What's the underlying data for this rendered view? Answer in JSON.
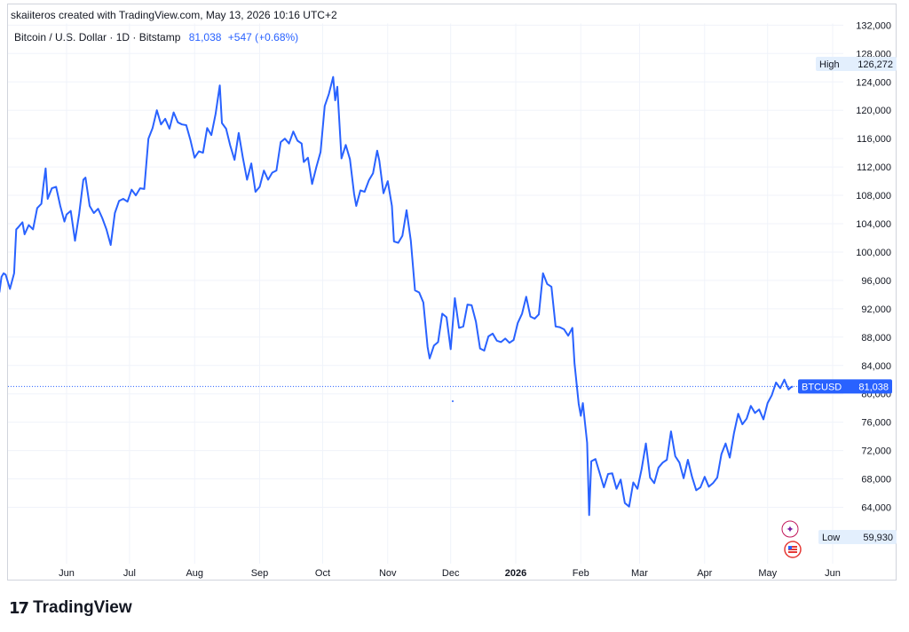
{
  "header": {
    "credit": "skaiiteros created with TradingView.com, May 13, 2026 10:16 UTC+2"
  },
  "legend": {
    "symbol": "Bitcoin / U.S. Dollar · 1D · Bitstamp",
    "last_price": "81,038",
    "change": "+547 (+0.68%)"
  },
  "footer": {
    "brand": "TradingView"
  },
  "colors": {
    "line": "#2962ff",
    "badge": "#2962ff",
    "grid": "#f0f3fa"
  },
  "chart_data": {
    "type": "line",
    "title": "",
    "symbol": "BTCUSD",
    "ylim": [
      58000,
      134000
    ],
    "y_ticks": [
      64000,
      68000,
      72000,
      76000,
      80000,
      84000,
      88000,
      92000,
      96000,
      100000,
      104000,
      108000,
      112000,
      116000,
      120000,
      124000,
      128000,
      132000
    ],
    "y_tick_labels": [
      "64,000",
      "68,000",
      "72,000",
      "76,000",
      "80,000",
      "84,000",
      "88,000",
      "92,000",
      "96,000",
      "100,000",
      "104,000",
      "108,000",
      "112,000",
      "116,000",
      "120,000",
      "124,000",
      "128,000",
      "132,000"
    ],
    "x_range": [
      "2025-04-30",
      "2026-06-30"
    ],
    "x_ticks": [
      {
        "date": "2025-06-01",
        "label": "Jun",
        "bold": false
      },
      {
        "date": "2025-07-01",
        "label": "Jul",
        "bold": false
      },
      {
        "date": "2025-08-01",
        "label": "Aug",
        "bold": false
      },
      {
        "date": "2025-09-01",
        "label": "Sep",
        "bold": false
      },
      {
        "date": "2025-10-01",
        "label": "Oct",
        "bold": false
      },
      {
        "date": "2025-11-01",
        "label": "Nov",
        "bold": false
      },
      {
        "date": "2025-12-01",
        "label": "Dec",
        "bold": false
      },
      {
        "date": "2026-01-01",
        "label": "2026",
        "bold": true
      },
      {
        "date": "2026-02-01",
        "label": "Feb",
        "bold": false
      },
      {
        "date": "2026-03-01",
        "label": "Mar",
        "bold": false
      },
      {
        "date": "2026-04-01",
        "label": "Apr",
        "bold": false
      },
      {
        "date": "2026-05-01",
        "label": "May",
        "bold": false
      },
      {
        "date": "2026-06-01",
        "label": "Jun",
        "bold": false
      }
    ],
    "high": {
      "label": "High",
      "value": "126,272"
    },
    "low": {
      "label": "Low",
      "value": "59,930"
    },
    "last": {
      "label": "BTCUSD",
      "value": "81,038",
      "y": 81038
    },
    "series": [
      {
        "points": [
          [
            "2025-04-30",
            94300
          ],
          [
            "2025-05-01",
            96500
          ],
          [
            "2025-05-02",
            97000
          ],
          [
            "2025-05-03",
            96800
          ],
          [
            "2025-05-05",
            94800
          ],
          [
            "2025-05-07",
            97000
          ],
          [
            "2025-05-08",
            103200
          ],
          [
            "2025-05-09",
            103500
          ],
          [
            "2025-05-11",
            104200
          ],
          [
            "2025-05-12",
            102500
          ],
          [
            "2025-05-14",
            103800
          ],
          [
            "2025-05-16",
            103200
          ],
          [
            "2025-05-18",
            106200
          ],
          [
            "2025-05-20",
            106800
          ],
          [
            "2025-05-21",
            109500
          ],
          [
            "2025-05-22",
            111800
          ],
          [
            "2025-05-23",
            107500
          ],
          [
            "2025-05-25",
            109000
          ],
          [
            "2025-05-27",
            109200
          ],
          [
            "2025-05-29",
            106500
          ],
          [
            "2025-05-31",
            104300
          ],
          [
            "2025-06-01",
            105300
          ],
          [
            "2025-06-03",
            105800
          ],
          [
            "2025-06-05",
            101600
          ],
          [
            "2025-06-07",
            105400
          ],
          [
            "2025-06-09",
            110200
          ],
          [
            "2025-06-10",
            110500
          ],
          [
            "2025-06-12",
            106500
          ],
          [
            "2025-06-14",
            105500
          ],
          [
            "2025-06-16",
            106100
          ],
          [
            "2025-06-18",
            104800
          ],
          [
            "2025-06-20",
            103200
          ],
          [
            "2025-06-22",
            101000
          ],
          [
            "2025-06-24",
            105500
          ],
          [
            "2025-06-26",
            107200
          ],
          [
            "2025-06-28",
            107500
          ],
          [
            "2025-06-30",
            107100
          ],
          [
            "2025-07-02",
            108800
          ],
          [
            "2025-07-04",
            108000
          ],
          [
            "2025-07-06",
            109000
          ],
          [
            "2025-07-08",
            108900
          ],
          [
            "2025-07-10",
            116000
          ],
          [
            "2025-07-12",
            117500
          ],
          [
            "2025-07-14",
            120000
          ],
          [
            "2025-07-16",
            118000
          ],
          [
            "2025-07-18",
            118800
          ],
          [
            "2025-07-20",
            117400
          ],
          [
            "2025-07-22",
            119700
          ],
          [
            "2025-07-24",
            118300
          ],
          [
            "2025-07-26",
            118000
          ],
          [
            "2025-07-28",
            117900
          ],
          [
            "2025-07-30",
            115800
          ],
          [
            "2025-08-01",
            113300
          ],
          [
            "2025-08-03",
            114200
          ],
          [
            "2025-08-05",
            114000
          ],
          [
            "2025-08-07",
            117500
          ],
          [
            "2025-08-09",
            116500
          ],
          [
            "2025-08-11",
            119500
          ],
          [
            "2025-08-13",
            123500
          ],
          [
            "2025-08-14",
            118200
          ],
          [
            "2025-08-16",
            117400
          ],
          [
            "2025-08-18",
            115000
          ],
          [
            "2025-08-20",
            113000
          ],
          [
            "2025-08-22",
            116800
          ],
          [
            "2025-08-24",
            113300
          ],
          [
            "2025-08-26",
            110200
          ],
          [
            "2025-08-28",
            112500
          ],
          [
            "2025-08-30",
            108500
          ],
          [
            "2025-09-01",
            109200
          ],
          [
            "2025-09-03",
            111500
          ],
          [
            "2025-09-05",
            110200
          ],
          [
            "2025-09-07",
            111200
          ],
          [
            "2025-09-09",
            111500
          ],
          [
            "2025-09-11",
            115500
          ],
          [
            "2025-09-13",
            116000
          ],
          [
            "2025-09-15",
            115300
          ],
          [
            "2025-09-17",
            117000
          ],
          [
            "2025-09-19",
            115700
          ],
          [
            "2025-09-21",
            115300
          ],
          [
            "2025-09-22",
            112700
          ],
          [
            "2025-09-24",
            113300
          ],
          [
            "2025-09-26",
            109600
          ],
          [
            "2025-09-28",
            112000
          ],
          [
            "2025-09-30",
            114100
          ],
          [
            "2025-10-02",
            120600
          ],
          [
            "2025-10-04",
            122300
          ],
          [
            "2025-10-06",
            124700
          ],
          [
            "2025-10-07",
            121400
          ],
          [
            "2025-10-08",
            123300
          ],
          [
            "2025-10-10",
            113200
          ],
          [
            "2025-10-12",
            115100
          ],
          [
            "2025-10-14",
            113100
          ],
          [
            "2025-10-16",
            108200
          ],
          [
            "2025-10-17",
            106500
          ],
          [
            "2025-10-19",
            108700
          ],
          [
            "2025-10-21",
            108500
          ],
          [
            "2025-10-23",
            110100
          ],
          [
            "2025-10-25",
            111100
          ],
          [
            "2025-10-27",
            114300
          ],
          [
            "2025-10-28",
            112900
          ],
          [
            "2025-10-30",
            108300
          ],
          [
            "2025-11-01",
            110000
          ],
          [
            "2025-11-03",
            106500
          ],
          [
            "2025-11-04",
            101500
          ],
          [
            "2025-11-06",
            101300
          ],
          [
            "2025-11-08",
            102300
          ],
          [
            "2025-11-10",
            105900
          ],
          [
            "2025-11-12",
            101600
          ],
          [
            "2025-11-14",
            94600
          ],
          [
            "2025-11-16",
            94300
          ],
          [
            "2025-11-18",
            92900
          ],
          [
            "2025-11-20",
            86600
          ],
          [
            "2025-11-21",
            85000
          ],
          [
            "2025-11-23",
            86800
          ],
          [
            "2025-11-25",
            87300
          ],
          [
            "2025-11-27",
            91300
          ],
          [
            "2025-11-29",
            90800
          ],
          [
            "2025-12-01",
            86300
          ],
          [
            "2025-12-03",
            93500
          ],
          [
            "2025-12-05",
            89300
          ],
          [
            "2025-12-07",
            89500
          ],
          [
            "2025-12-09",
            92600
          ],
          [
            "2025-12-11",
            92500
          ],
          [
            "2025-12-13",
            90200
          ],
          [
            "2025-12-15",
            86400
          ],
          [
            "2025-12-17",
            86100
          ],
          [
            "2025-12-19",
            88100
          ],
          [
            "2025-12-21",
            88500
          ],
          [
            "2025-12-23",
            87500
          ],
          [
            "2025-12-25",
            87300
          ],
          [
            "2025-12-27",
            87800
          ],
          [
            "2025-12-29",
            87200
          ],
          [
            "2025-12-31",
            87600
          ],
          [
            "2026-01-02",
            90000
          ],
          [
            "2026-01-04",
            91300
          ],
          [
            "2026-01-06",
            93700
          ],
          [
            "2026-01-08",
            90900
          ],
          [
            "2026-01-10",
            90600
          ],
          [
            "2026-01-12",
            91200
          ],
          [
            "2026-01-14",
            97000
          ],
          [
            "2026-01-16",
            95500
          ],
          [
            "2026-01-18",
            95100
          ],
          [
            "2026-01-20",
            89500
          ],
          [
            "2026-01-22",
            89400
          ],
          [
            "2026-01-24",
            89100
          ],
          [
            "2026-01-26",
            88200
          ],
          [
            "2026-01-28",
            89300
          ],
          [
            "2026-01-29",
            84300
          ],
          [
            "2026-01-31",
            78600
          ],
          [
            "2026-02-01",
            76900
          ],
          [
            "2026-02-02",
            78700
          ],
          [
            "2026-02-04",
            73100
          ],
          [
            "2026-02-05",
            62900
          ],
          [
            "2026-02-06",
            70500
          ],
          [
            "2026-02-08",
            70800
          ],
          [
            "2026-02-10",
            68800
          ],
          [
            "2026-02-12",
            66800
          ],
          [
            "2026-02-14",
            68700
          ],
          [
            "2026-02-16",
            68800
          ],
          [
            "2026-02-18",
            66600
          ],
          [
            "2026-02-20",
            67900
          ],
          [
            "2026-02-22",
            64600
          ],
          [
            "2026-02-24",
            64100
          ],
          [
            "2026-02-26",
            67500
          ],
          [
            "2026-02-28",
            66600
          ],
          [
            "2026-03-02",
            69400
          ],
          [
            "2026-03-04",
            73000
          ],
          [
            "2026-03-06",
            68200
          ],
          [
            "2026-03-08",
            67400
          ],
          [
            "2026-03-10",
            69600
          ],
          [
            "2026-03-12",
            70300
          ],
          [
            "2026-03-14",
            70700
          ],
          [
            "2026-03-16",
            74700
          ],
          [
            "2026-03-18",
            71200
          ],
          [
            "2026-03-20",
            70300
          ],
          [
            "2026-03-22",
            68100
          ],
          [
            "2026-03-24",
            70700
          ],
          [
            "2026-03-26",
            68300
          ],
          [
            "2026-03-28",
            66400
          ],
          [
            "2026-03-30",
            66800
          ],
          [
            "2026-04-01",
            68300
          ],
          [
            "2026-04-03",
            66900
          ],
          [
            "2026-04-05",
            67400
          ],
          [
            "2026-04-07",
            68200
          ],
          [
            "2026-04-09",
            71500
          ],
          [
            "2026-04-11",
            73000
          ],
          [
            "2026-04-13",
            71000
          ],
          [
            "2026-04-15",
            74500
          ],
          [
            "2026-04-17",
            77200
          ],
          [
            "2026-04-19",
            75700
          ],
          [
            "2026-04-21",
            76500
          ],
          [
            "2026-04-23",
            78300
          ],
          [
            "2026-04-25",
            77300
          ],
          [
            "2026-04-27",
            77800
          ],
          [
            "2026-04-29",
            76400
          ],
          [
            "2026-05-01",
            78700
          ],
          [
            "2026-05-03",
            79800
          ],
          [
            "2026-05-05",
            81600
          ],
          [
            "2026-05-07",
            80800
          ],
          [
            "2026-05-09",
            82000
          ],
          [
            "2026-05-11",
            80600
          ],
          [
            "2026-05-12",
            80900
          ],
          [
            "2026-05-13",
            81038
          ]
        ]
      }
    ]
  }
}
